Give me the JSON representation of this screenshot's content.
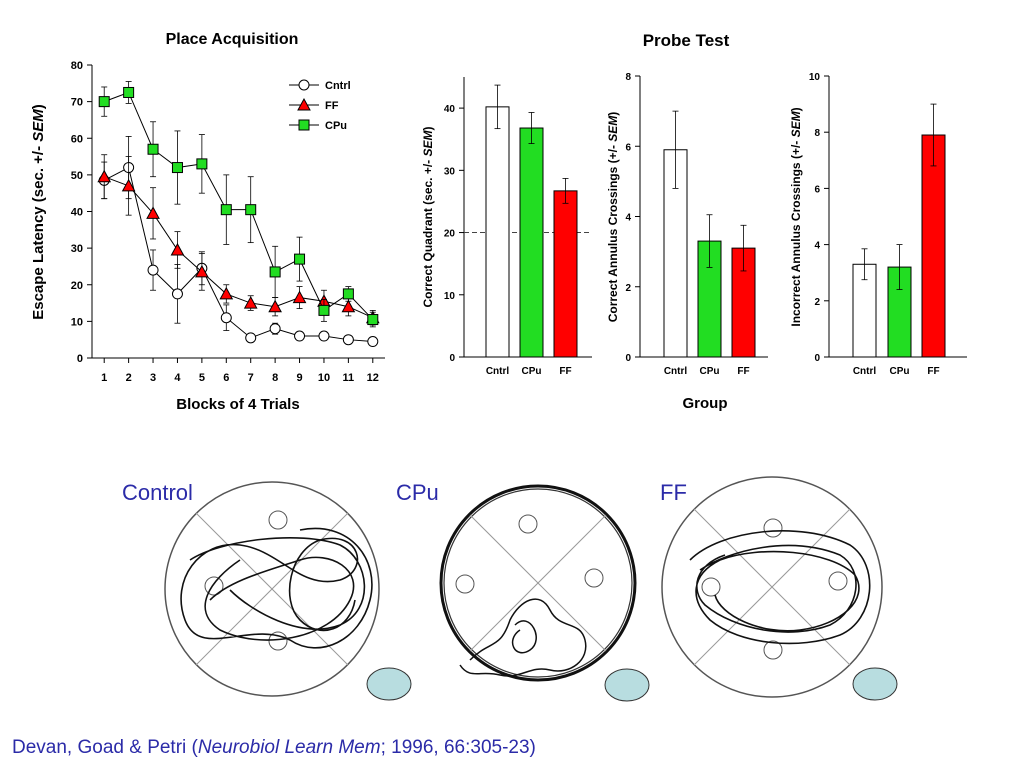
{
  "colors": {
    "cntrl": "#ffffff",
    "ff": "#ff0000",
    "cpu": "#22dd22",
    "ink": "#000000",
    "caption": "#2b2ba8",
    "platform": "#b8dde0"
  },
  "chart_data": [
    {
      "type": "line",
      "title": "Place Acquisition",
      "xlabel": "Blocks of 4 Trials",
      "ylabel": "Escape Latency (sec. +/- SEM)",
      "ylabel_parts": [
        "Escape Latency (sec. +/- ",
        "SEM",
        ")"
      ],
      "x": [
        1,
        2,
        3,
        4,
        5,
        6,
        7,
        8,
        9,
        10,
        11,
        12
      ],
      "xlim": [
        0.5,
        12.5
      ],
      "ylim": [
        0,
        80
      ],
      "yticks": [
        0,
        10,
        20,
        30,
        40,
        50,
        60,
        70,
        80
      ],
      "legend": "top-right",
      "series": [
        {
          "name": "Cntrl",
          "marker": "circle",
          "color": "#ffffff",
          "values": [
            48.5,
            52,
            24,
            17.5,
            24.5,
            11,
            5.5,
            8,
            6,
            6,
            5,
            4.5
          ],
          "err": [
            5,
            8.5,
            5.5,
            8,
            4.5,
            3.5,
            1,
            1.5,
            1,
            1,
            1,
            1
          ]
        },
        {
          "name": "FF",
          "marker": "triangle",
          "color": "#ff0000",
          "values": [
            49.5,
            47,
            39.5,
            29.5,
            23.5,
            17.5,
            15,
            14,
            16.5,
            15.5,
            14,
            11
          ],
          "err": [
            6,
            8,
            7,
            5,
            5,
            2.5,
            2,
            2.5,
            3,
            3,
            2.5,
            2
          ]
        },
        {
          "name": "CPu",
          "marker": "square",
          "color": "#22dd22",
          "values": [
            70,
            72.5,
            57,
            52,
            53,
            40.5,
            40.5,
            23.5,
            27,
            13,
            17.5,
            10.5
          ],
          "err": [
            4,
            3,
            7.5,
            10,
            8,
            9.5,
            9,
            7,
            6,
            3,
            2,
            2
          ]
        }
      ]
    },
    {
      "type": "bar",
      "title": "Probe Test",
      "ylabel_parts": [
        "Correct Quadrant (sec. +/- ",
        "SEM",
        ")"
      ],
      "categories": [
        "Cntrl",
        "CPu",
        "FF"
      ],
      "values": [
        40.2,
        36.8,
        26.7
      ],
      "err": [
        3.5,
        2.5,
        2
      ],
      "ylim": [
        0,
        45
      ],
      "yticks": [
        0,
        10,
        20,
        30,
        40
      ],
      "reference_line": 20
    },
    {
      "type": "bar",
      "ylabel_parts": [
        "Correct Annulus Crossings (+/- ",
        "SEM",
        ")"
      ],
      "xlabel": "Group",
      "categories": [
        "Cntrl",
        "CPu",
        "FF"
      ],
      "values": [
        5.9,
        3.3,
        3.1
      ],
      "err": [
        1.1,
        0.75,
        0.65
      ],
      "ylim": [
        0,
        8
      ],
      "yticks": [
        0,
        2,
        4,
        6,
        8
      ]
    },
    {
      "type": "bar",
      "ylabel_parts": [
        "Incorrect Annulus Crossings (+/- ",
        "SEM",
        ")"
      ],
      "categories": [
        "Cntrl",
        "CPu",
        "FF"
      ],
      "values": [
        3.3,
        3.2,
        7.9
      ],
      "err": [
        0.55,
        0.8,
        1.1
      ],
      "ylim": [
        0,
        10
      ],
      "yticks": [
        0,
        2,
        4,
        6,
        8,
        10
      ]
    }
  ],
  "swim_paths": {
    "labels": [
      "Control",
      "CPu",
      "FF"
    ]
  },
  "citation": {
    "before": "Devan, Goad & Petri (",
    "journal": "Neurobiol Learn Mem",
    "after": "; 1996, 66:305-23)"
  }
}
